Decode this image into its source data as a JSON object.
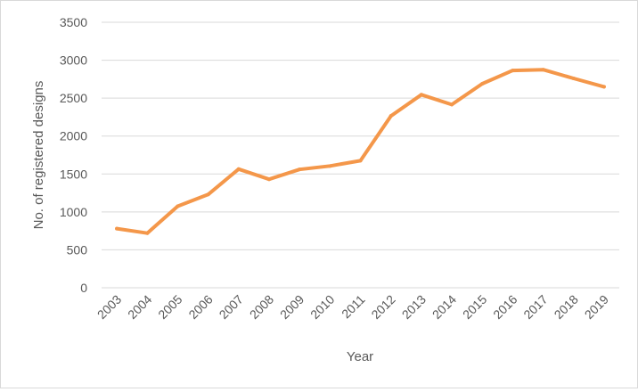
{
  "chart_data": {
    "type": "line",
    "title": "",
    "xlabel": "Year",
    "ylabel": "No. of registered designs",
    "categories": [
      "2003",
      "2004",
      "2005",
      "2006",
      "2007",
      "2008",
      "2009",
      "2010",
      "2011",
      "2012",
      "2013",
      "2014",
      "2015",
      "2016",
      "2017",
      "2018",
      "2019"
    ],
    "series": [
      {
        "values": [
          780,
          720,
          1075,
          1230,
          1565,
          1430,
          1560,
          1605,
          1675,
          2265,
          2545,
          2415,
          2690,
          2865,
          2875,
          2760,
          2650
        ]
      }
    ],
    "ylim": [
      0,
      3500
    ],
    "yticks": [
      "0",
      "500",
      "1000",
      "1500",
      "2000",
      "2500",
      "3000",
      "3500"
    ],
    "grid": "horizontal",
    "legend": "none",
    "colors": {
      "line": "#F4974A",
      "grid": "#d9d9d9",
      "text": "#595959"
    }
  }
}
